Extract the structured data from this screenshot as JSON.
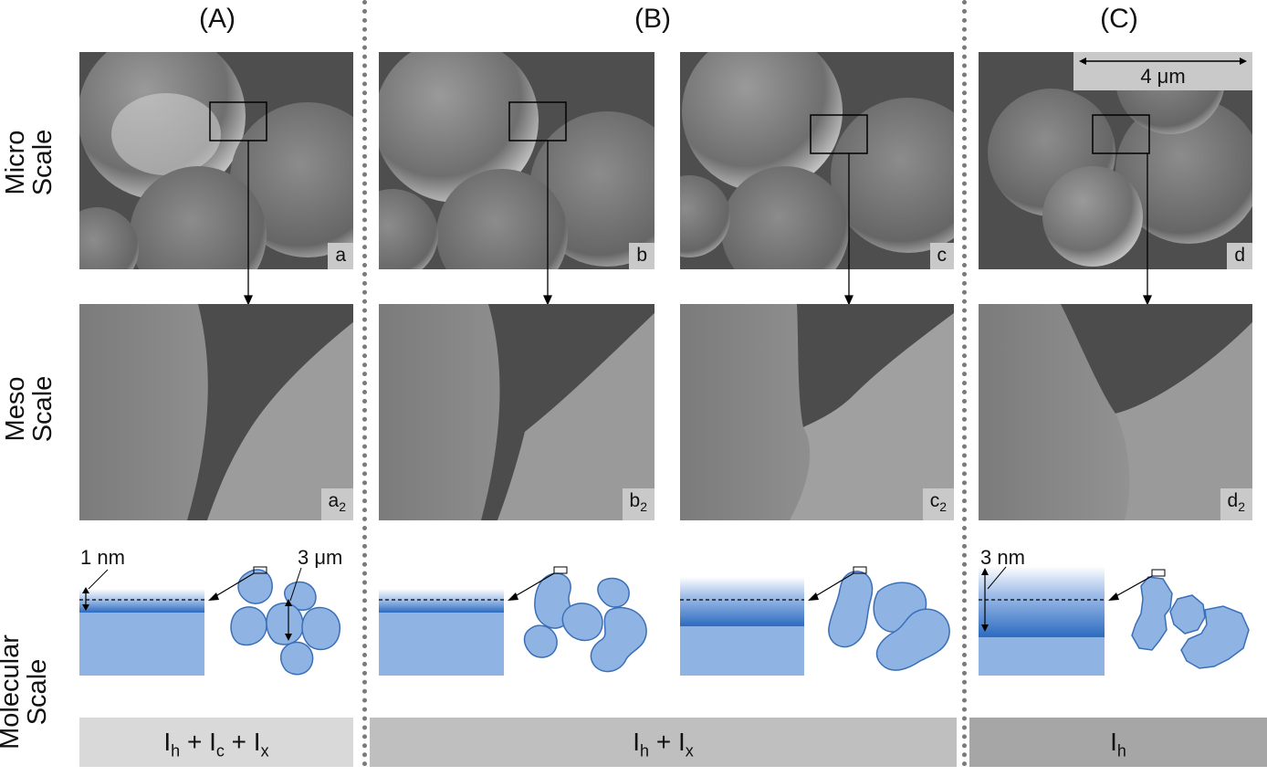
{
  "columns": {
    "A": "(A)",
    "B": "(B)",
    "C": "(C)"
  },
  "rows": {
    "micro": [
      "Micro",
      "Scale"
    ],
    "meso": [
      "Meso",
      "Scale"
    ],
    "molecular": [
      "Molecular",
      "Scale"
    ]
  },
  "panels": {
    "a": {
      "letter": "a"
    },
    "b": {
      "letter": "b"
    },
    "c": {
      "letter": "c"
    },
    "d": {
      "letter": "d"
    },
    "a2": {
      "letter": "a",
      "sub": "2"
    },
    "b2": {
      "letter": "b",
      "sub": "2"
    },
    "c2": {
      "letter": "c",
      "sub": "2"
    },
    "d2": {
      "letter": "d",
      "sub": "2"
    }
  },
  "annotations": {
    "scale_bar": "4 μm",
    "thickness_A": "1 nm",
    "particle_A": "3 μm",
    "thickness_C": "3 nm"
  },
  "bottom": {
    "A": {
      "t1": "I",
      "s1": "h",
      "p1": " + I",
      "s2": "c",
      "p2": " + I",
      "s3": "x"
    },
    "B": {
      "t1": "I",
      "s1": "h",
      "p1": " + I",
      "s2": "x"
    },
    "C": {
      "t1": "I",
      "s1": "h"
    }
  },
  "colors": {
    "bar_A": "#d9d9d9",
    "bar_B": "#bfbfbf",
    "bar_C": "#a6a6a6",
    "particle_fill": "#8fb4e3",
    "particle_stroke": "#3a6fb8",
    "layer_dark": "#2c6bc0"
  }
}
